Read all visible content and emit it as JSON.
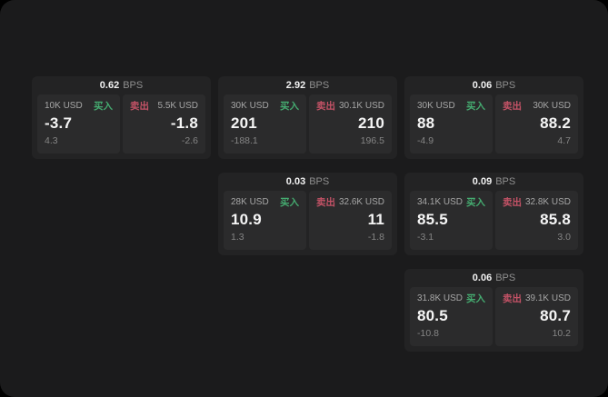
{
  "labels": {
    "bps_unit": "BPS",
    "buy": "买入",
    "sell": "卖出"
  },
  "colors": {
    "page_bg": "#1b1b1c",
    "card_bg": "#232324",
    "panel_bg": "#2b2b2c",
    "buy": "#45ab70",
    "sell": "#c35266"
  },
  "cards": [
    {
      "bps": "0.62",
      "buy": {
        "amount": "10K USD",
        "price": "-3.7",
        "delta": "4.3"
      },
      "sell": {
        "amount": "5.5K USD",
        "price": "-1.8",
        "delta": "-2.6"
      }
    },
    {
      "bps": "2.92",
      "buy": {
        "amount": "30K USD",
        "price": "201",
        "delta": "-188.1"
      },
      "sell": {
        "amount": "30.1K USD",
        "price": "210",
        "delta": "196.5"
      }
    },
    {
      "bps": "0.06",
      "buy": {
        "amount": "30K USD",
        "price": "88",
        "delta": "-4.9"
      },
      "sell": {
        "amount": "30K USD",
        "price": "88.2",
        "delta": "4.7"
      }
    },
    {
      "bps": "0.03",
      "buy": {
        "amount": "28K USD",
        "price": "10.9",
        "delta": "1.3"
      },
      "sell": {
        "amount": "32.6K USD",
        "price": "11",
        "delta": "-1.8"
      }
    },
    {
      "bps": "0.09",
      "buy": {
        "amount": "34.1K USD",
        "price": "85.5",
        "delta": "-3.1"
      },
      "sell": {
        "amount": "32.8K USD",
        "price": "85.8",
        "delta": "3.0"
      }
    },
    {
      "bps": "0.06",
      "buy": {
        "amount": "31.8K USD",
        "price": "80.5",
        "delta": "-10.8"
      },
      "sell": {
        "amount": "39.1K USD",
        "price": "80.7",
        "delta": "10.2"
      }
    }
  ]
}
